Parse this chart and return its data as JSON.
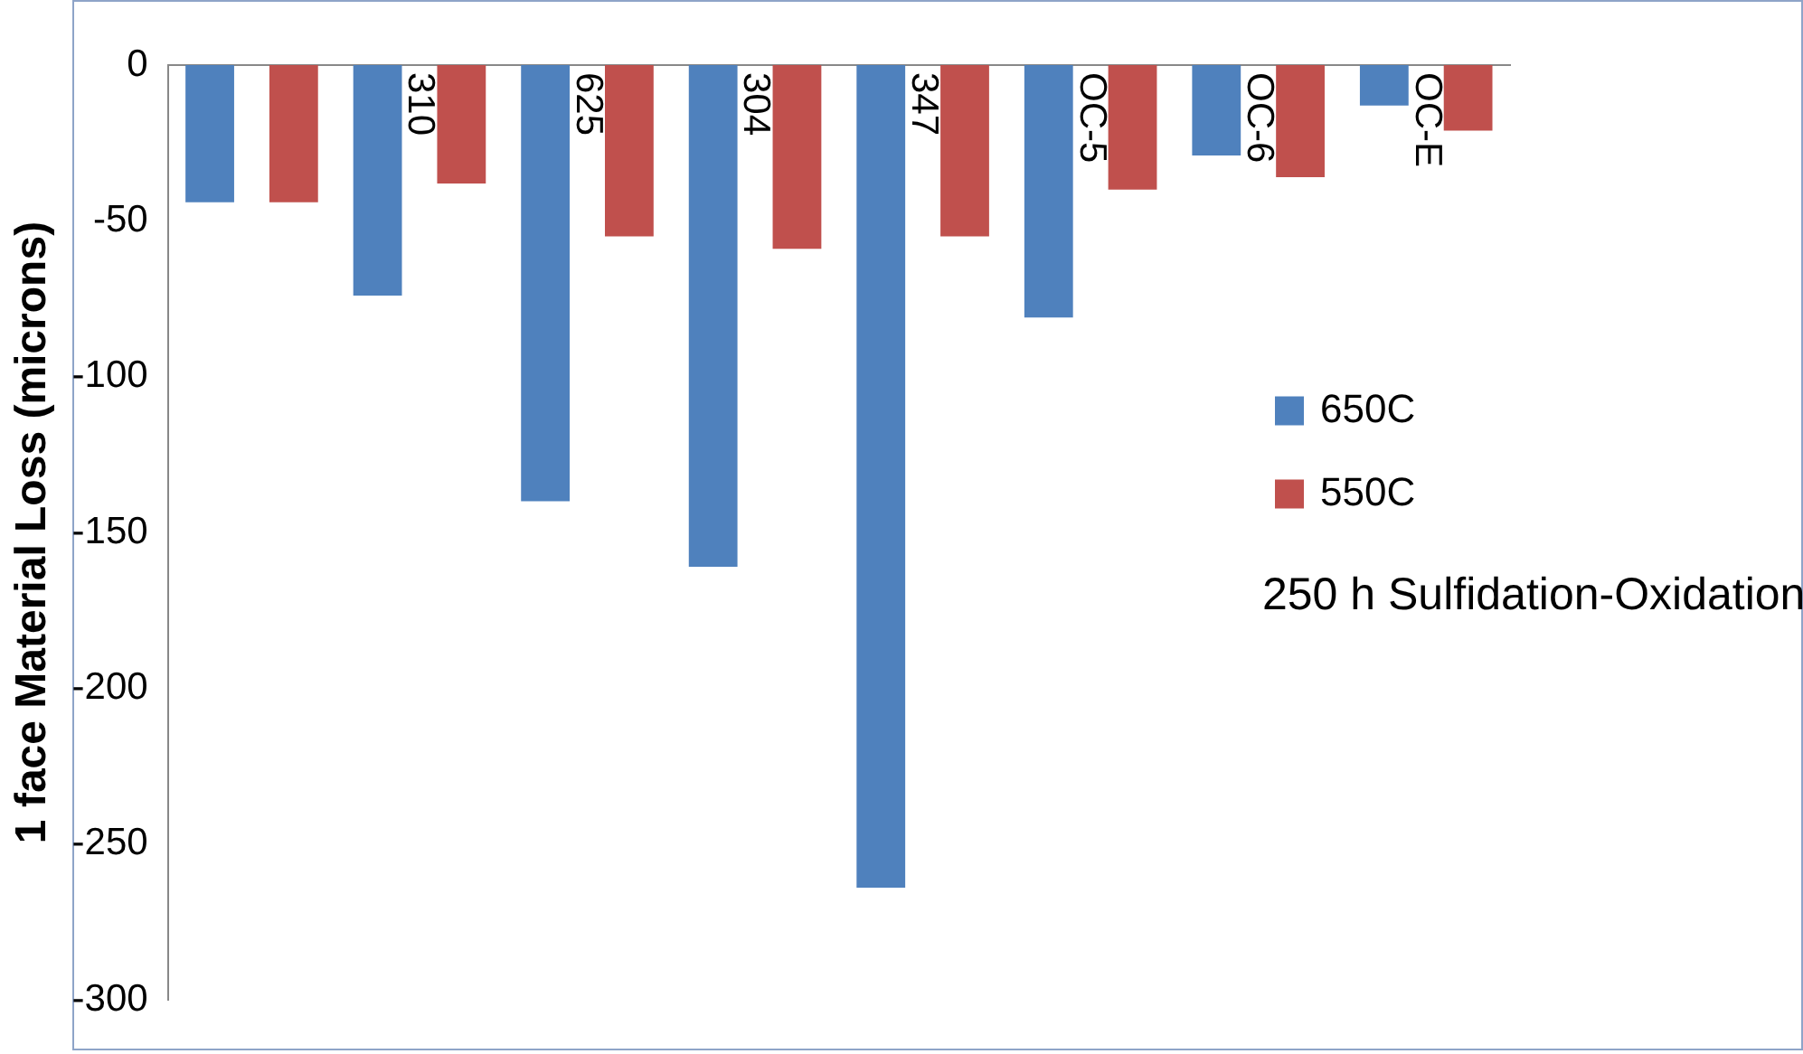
{
  "chart_data": {
    "type": "bar",
    "ylabel": "1 face Material Loss (microns)",
    "categories": [
      null,
      "310",
      "625",
      "304",
      "347",
      "OC-5",
      "OC-6",
      "OC-E"
    ],
    "series": [
      {
        "name": "650C",
        "color": "#4f81bd",
        "values": [
          -44,
          -74,
          -140,
          -161,
          -264,
          -81,
          -29,
          -13
        ]
      },
      {
        "name": "550C",
        "color": "#c0504d",
        "values": [
          -44,
          -38,
          -55,
          -59,
          -55,
          -40,
          -36,
          -21
        ]
      }
    ],
    "ylim": [
      -300,
      0
    ],
    "yticks": [
      -300,
      -250,
      -200,
      -150,
      -100,
      -50,
      0
    ],
    "grid": false,
    "legend": "right",
    "annotations": [
      "250 h Sulfidation-Oxidation"
    ]
  }
}
